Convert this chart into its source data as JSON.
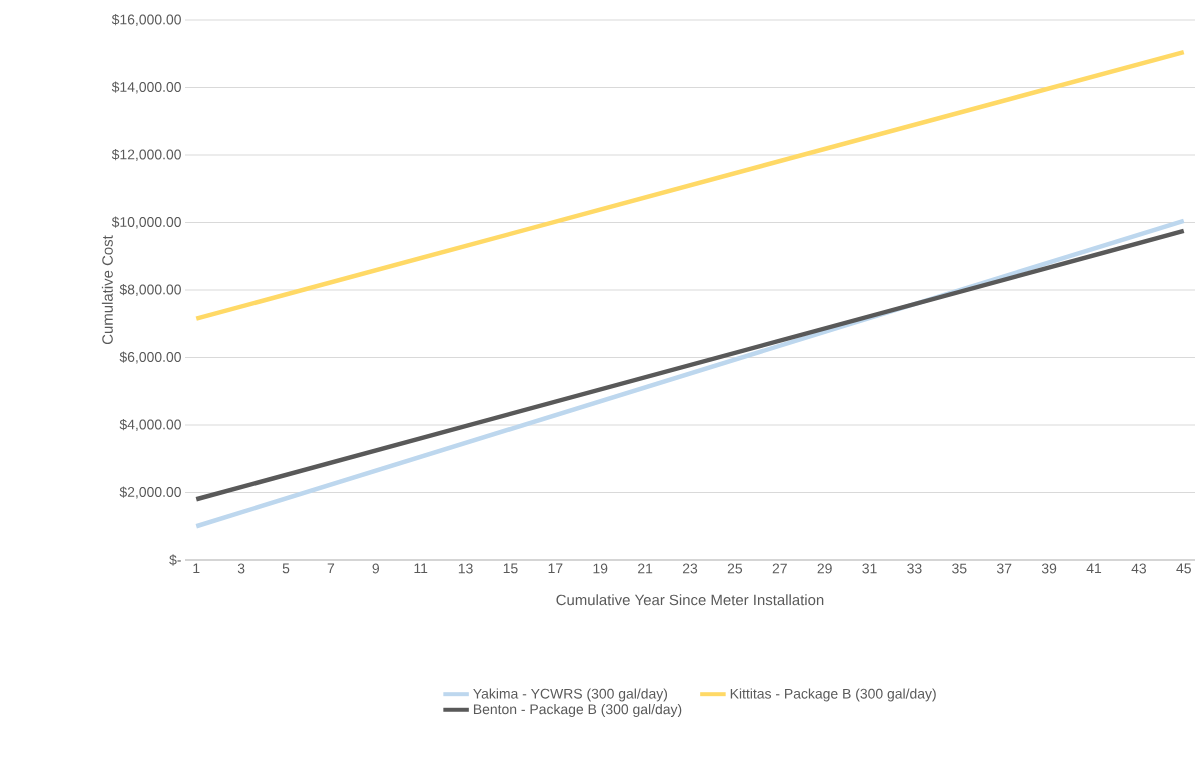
{
  "chart_data": {
    "type": "line",
    "xlabel": "Cumulative Year Since Meter Installation",
    "ylabel": "Cumulative Cost",
    "x": [
      1,
      45
    ],
    "series": [
      {
        "name": "Yakima - YCWRS (300 gal/day)",
        "color": "#bdd7ee",
        "values": [
          1000,
          10050
        ]
      },
      {
        "name": "Kittitas - Package B (300 gal/day)",
        "color": "#ffd966",
        "values": [
          7150,
          15050
        ]
      },
      {
        "name": "Benton - Package B (300 gal/day)",
        "color": "#595959",
        "values": [
          1800,
          9750
        ]
      }
    ],
    "xlim": [
      0.5,
      45.5
    ],
    "xticks": [
      1,
      3,
      5,
      7,
      9,
      11,
      13,
      15,
      17,
      19,
      21,
      23,
      25,
      27,
      29,
      31,
      33,
      35,
      37,
      39,
      41,
      43,
      45
    ],
    "ylim": [
      0,
      16000
    ],
    "yticks": [
      {
        "value": 0,
        "label": "$-"
      },
      {
        "value": 2000,
        "label": "$2,000.00"
      },
      {
        "value": 4000,
        "label": "$4,000.00"
      },
      {
        "value": 6000,
        "label": "$6,000.00"
      },
      {
        "value": 8000,
        "label": "$8,000.00"
      },
      {
        "value": 10000,
        "label": "$10,000.00"
      },
      {
        "value": 12000,
        "label": "$12,000.00"
      },
      {
        "value": 14000,
        "label": "$14,000.00"
      },
      {
        "value": 16000,
        "label": "$16,000.00"
      }
    ],
    "grid": "y",
    "legend": "bottom"
  }
}
